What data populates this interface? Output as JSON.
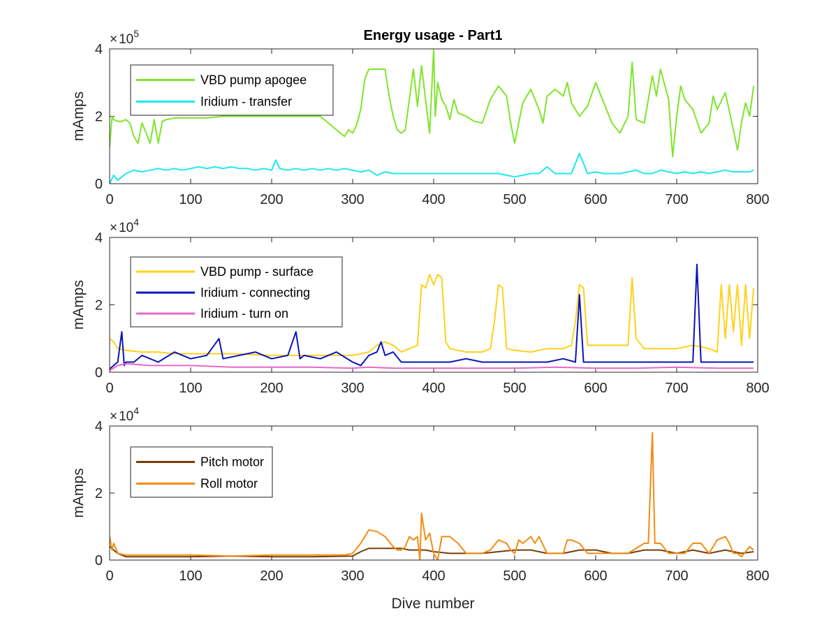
{
  "title": "Energy usage - Part1",
  "xlabel": "Dive number",
  "chart_data": [
    {
      "type": "line",
      "title": "Energy usage - Part1",
      "ylabel": "mAmps",
      "xlabel": "",
      "multiplier": "10",
      "exponent": "5",
      "xlim": [
        0,
        800
      ],
      "ylim": [
        0,
        4
      ],
      "xticks": [
        "0",
        "100",
        "200",
        "300",
        "400",
        "500",
        "600",
        "700",
        "800"
      ],
      "yticks": [
        "0",
        "2",
        "4"
      ],
      "legend_position": "top-left",
      "grid": false,
      "series": [
        {
          "name": "VBD pump apogee",
          "color": "#7fe52a",
          "x": [
            0,
            3,
            5,
            10,
            15,
            20,
            25,
            30,
            35,
            40,
            45,
            50,
            55,
            60,
            65,
            70,
            80,
            90,
            100,
            120,
            140,
            160,
            180,
            200,
            220,
            240,
            260,
            270,
            280,
            285,
            290,
            295,
            300,
            305,
            310,
            315,
            320,
            330,
            340,
            345,
            350,
            355,
            360,
            365,
            370,
            375,
            380,
            385,
            390,
            395,
            398,
            400,
            402,
            405,
            410,
            415,
            420,
            425,
            430,
            440,
            450,
            460,
            470,
            480,
            490,
            495,
            500,
            505,
            510,
            520,
            530,
            535,
            540,
            550,
            560,
            565,
            570,
            580,
            590,
            600,
            610,
            620,
            630,
            640,
            645,
            650,
            660,
            670,
            675,
            680,
            690,
            695,
            700,
            705,
            710,
            720,
            730,
            740,
            745,
            750,
            760,
            770,
            775,
            780,
            785,
            790,
            795
          ],
          "y": [
            1.1,
            2.0,
            1.9,
            1.85,
            1.85,
            1.9,
            1.8,
            1.4,
            1.2,
            1.8,
            1.5,
            1.2,
            1.9,
            1.2,
            1.85,
            1.9,
            1.95,
            1.95,
            1.95,
            1.95,
            2.0,
            2.0,
            2.0,
            2.0,
            2.0,
            2.0,
            2.0,
            1.8,
            1.6,
            1.5,
            1.4,
            1.6,
            1.5,
            1.75,
            2.2,
            3.1,
            3.4,
            3.4,
            3.4,
            2.6,
            2.0,
            1.6,
            1.5,
            1.6,
            2.5,
            3.4,
            2.3,
            3.5,
            2.5,
            1.5,
            3.0,
            4.0,
            2.0,
            3.0,
            2.5,
            2.3,
            1.9,
            2.5,
            2.1,
            2.0,
            1.85,
            1.8,
            2.5,
            2.9,
            2.6,
            1.8,
            1.2,
            1.8,
            2.4,
            2.8,
            2.2,
            1.8,
            2.6,
            2.8,
            2.6,
            3.0,
            2.4,
            2.0,
            2.3,
            3.0,
            2.4,
            1.8,
            1.5,
            2.0,
            3.6,
            1.9,
            1.8,
            3.2,
            2.6,
            3.4,
            2.5,
            0.8,
            2.0,
            2.9,
            2.5,
            2.2,
            1.5,
            1.8,
            2.6,
            2.2,
            2.7,
            1.6,
            1.0,
            1.8,
            2.4,
            2.0,
            2.9
          ]
        },
        {
          "name": "Iridium - transfer",
          "color": "#1ee8f0",
          "x": [
            0,
            5,
            10,
            20,
            30,
            40,
            50,
            60,
            70,
            80,
            90,
            100,
            110,
            120,
            130,
            140,
            150,
            160,
            170,
            180,
            190,
            200,
            205,
            210,
            220,
            230,
            240,
            250,
            260,
            270,
            280,
            290,
            300,
            310,
            320,
            330,
            340,
            350,
            360,
            370,
            380,
            390,
            400,
            410,
            420,
            430,
            440,
            450,
            460,
            470,
            480,
            490,
            500,
            510,
            520,
            530,
            540,
            550,
            560,
            570,
            580,
            590,
            600,
            610,
            620,
            630,
            640,
            650,
            660,
            670,
            680,
            690,
            700,
            710,
            720,
            730,
            740,
            750,
            760,
            770,
            780,
            790,
            795
          ],
          "y": [
            0.0,
            0.25,
            0.1,
            0.3,
            0.4,
            0.35,
            0.4,
            0.45,
            0.4,
            0.45,
            0.4,
            0.45,
            0.5,
            0.45,
            0.5,
            0.45,
            0.5,
            0.45,
            0.45,
            0.4,
            0.45,
            0.4,
            0.7,
            0.45,
            0.4,
            0.45,
            0.4,
            0.45,
            0.4,
            0.45,
            0.4,
            0.45,
            0.4,
            0.35,
            0.4,
            0.25,
            0.35,
            0.3,
            0.3,
            0.3,
            0.3,
            0.3,
            0.3,
            0.3,
            0.3,
            0.3,
            0.3,
            0.3,
            0.3,
            0.3,
            0.3,
            0.25,
            0.2,
            0.25,
            0.3,
            0.3,
            0.5,
            0.3,
            0.3,
            0.3,
            0.9,
            0.3,
            0.35,
            0.3,
            0.3,
            0.3,
            0.35,
            0.4,
            0.3,
            0.3,
            0.4,
            0.35,
            0.3,
            0.35,
            0.3,
            0.35,
            0.3,
            0.35,
            0.4,
            0.35,
            0.35,
            0.35,
            0.4
          ]
        }
      ]
    },
    {
      "type": "line",
      "ylabel": "mAmps",
      "xlabel": "",
      "multiplier": "10",
      "exponent": "4",
      "xlim": [
        0,
        800
      ],
      "ylim": [
        0,
        4
      ],
      "xticks": [
        "0",
        "100",
        "200",
        "300",
        "400",
        "500",
        "600",
        "700",
        "800"
      ],
      "yticks": [
        "0",
        "2",
        "4"
      ],
      "legend_position": "top-left",
      "grid": false,
      "series": [
        {
          "name": "VBD pump - surface",
          "color": "#ffd11a",
          "x": [
            0,
            5,
            10,
            20,
            40,
            60,
            80,
            100,
            150,
            200,
            250,
            300,
            320,
            330,
            340,
            350,
            360,
            370,
            380,
            385,
            390,
            395,
            400,
            405,
            410,
            415,
            420,
            440,
            460,
            470,
            475,
            480,
            485,
            490,
            500,
            520,
            540,
            560,
            570,
            575,
            580,
            585,
            590,
            600,
            620,
            640,
            645,
            650,
            660,
            680,
            700,
            720,
            740,
            750,
            755,
            760,
            765,
            770,
            775,
            780,
            785,
            790,
            795
          ],
          "y": [
            1.0,
            0.9,
            0.7,
            0.65,
            0.6,
            0.6,
            0.55,
            0.55,
            0.55,
            0.5,
            0.5,
            0.5,
            0.6,
            0.8,
            0.9,
            0.8,
            0.6,
            0.7,
            0.8,
            2.6,
            2.5,
            2.9,
            2.6,
            2.9,
            2.8,
            0.9,
            0.7,
            0.6,
            0.6,
            0.7,
            1.5,
            2.6,
            2.5,
            0.7,
            0.65,
            0.6,
            0.7,
            0.7,
            0.8,
            1.5,
            2.6,
            2.5,
            0.8,
            0.8,
            0.8,
            0.8,
            2.8,
            1.0,
            0.7,
            0.7,
            0.7,
            0.8,
            0.7,
            0.6,
            2.6,
            1.0,
            2.6,
            1.2,
            2.6,
            0.8,
            2.6,
            1.0,
            2.5
          ]
        },
        {
          "name": "Iridium - connecting",
          "color": "#0a14b8",
          "x": [
            0,
            5,
            10,
            15,
            18,
            20,
            30,
            40,
            60,
            80,
            100,
            120,
            135,
            140,
            160,
            180,
            200,
            220,
            230,
            235,
            240,
            260,
            280,
            300,
            310,
            320,
            330,
            335,
            340,
            350,
            360,
            380,
            400,
            420,
            440,
            460,
            480,
            500,
            520,
            540,
            560,
            575,
            580,
            585,
            600,
            620,
            640,
            660,
            680,
            700,
            710,
            720,
            725,
            730,
            740,
            760,
            780,
            795
          ],
          "y": [
            0.1,
            0.2,
            0.3,
            1.2,
            0.2,
            0.3,
            0.3,
            0.5,
            0.3,
            0.6,
            0.4,
            0.5,
            1.0,
            0.4,
            0.5,
            0.6,
            0.4,
            0.5,
            1.2,
            0.4,
            0.5,
            0.4,
            0.6,
            0.3,
            0.2,
            0.5,
            0.6,
            0.9,
            0.5,
            0.6,
            0.3,
            0.3,
            0.3,
            0.3,
            0.4,
            0.3,
            0.3,
            0.3,
            0.3,
            0.3,
            0.4,
            0.3,
            2.3,
            0.3,
            0.3,
            0.3,
            0.3,
            0.3,
            0.3,
            0.3,
            0.3,
            0.3,
            3.2,
            0.3,
            0.3,
            0.3,
            0.3,
            0.3
          ]
        },
        {
          "name": "Iridium - turn on",
          "color": "#e668c8",
          "x": [
            0,
            10,
            20,
            50,
            100,
            150,
            200,
            250,
            300,
            320,
            350,
            400,
            450,
            500,
            550,
            600,
            650,
            700,
            750,
            795
          ],
          "y": [
            0.05,
            0.2,
            0.25,
            0.2,
            0.2,
            0.15,
            0.15,
            0.15,
            0.12,
            0.15,
            0.12,
            0.12,
            0.12,
            0.12,
            0.15,
            0.12,
            0.12,
            0.15,
            0.12,
            0.12
          ]
        }
      ]
    },
    {
      "type": "line",
      "ylabel": "mAmps",
      "xlabel": "Dive number",
      "multiplier": "10",
      "exponent": "4",
      "xlim": [
        0,
        800
      ],
      "ylim": [
        0,
        4
      ],
      "xticks": [
        "0",
        "100",
        "200",
        "300",
        "400",
        "500",
        "600",
        "700",
        "800"
      ],
      "yticks": [
        "0",
        "2",
        "4"
      ],
      "legend_position": "top-left",
      "grid": false,
      "series": [
        {
          "name": "Pitch motor",
          "color": "#7a3d0a",
          "x": [
            0,
            5,
            10,
            20,
            50,
            100,
            150,
            200,
            250,
            300,
            310,
            320,
            330,
            340,
            350,
            360,
            370,
            380,
            390,
            400,
            420,
            440,
            460,
            480,
            500,
            520,
            540,
            560,
            580,
            600,
            620,
            640,
            660,
            680,
            700,
            720,
            740,
            760,
            780,
            795
          ],
          "y": [
            0.4,
            0.3,
            0.2,
            0.1,
            0.1,
            0.1,
            0.12,
            0.1,
            0.1,
            0.12,
            0.25,
            0.35,
            0.35,
            0.35,
            0.35,
            0.35,
            0.3,
            0.3,
            0.3,
            0.25,
            0.2,
            0.2,
            0.2,
            0.25,
            0.3,
            0.3,
            0.2,
            0.2,
            0.3,
            0.3,
            0.2,
            0.2,
            0.3,
            0.3,
            0.2,
            0.3,
            0.2,
            0.3,
            0.2,
            0.25
          ]
        },
        {
          "name": "Roll motor",
          "color": "#f28c12",
          "x": [
            0,
            3,
            5,
            10,
            20,
            50,
            100,
            150,
            200,
            250,
            290,
            300,
            310,
            320,
            330,
            340,
            350,
            355,
            360,
            365,
            370,
            375,
            380,
            383,
            385,
            390,
            395,
            400,
            405,
            410,
            420,
            430,
            440,
            460,
            470,
            480,
            490,
            495,
            500,
            505,
            510,
            520,
            525,
            530,
            540,
            560,
            565,
            570,
            580,
            590,
            600,
            620,
            640,
            660,
            665,
            670,
            673,
            675,
            680,
            690,
            700,
            710,
            720,
            730,
            740,
            750,
            760,
            765,
            770,
            775,
            780,
            790,
            795
          ],
          "y": [
            0.7,
            0.3,
            0.5,
            0.2,
            0.15,
            0.15,
            0.15,
            0.12,
            0.15,
            0.15,
            0.15,
            0.2,
            0.5,
            0.9,
            0.85,
            0.7,
            0.4,
            0.3,
            0.3,
            0.4,
            0.7,
            0.6,
            0.7,
            0.0,
            1.4,
            0.6,
            0.8,
            0.2,
            0.0,
            0.7,
            0.7,
            0.5,
            0.2,
            0.2,
            0.3,
            0.6,
            0.5,
            0.3,
            0.2,
            0.6,
            0.5,
            0.7,
            0.5,
            0.7,
            0.2,
            0.2,
            0.6,
            0.6,
            0.5,
            0.2,
            0.2,
            0.2,
            0.2,
            0.5,
            0.5,
            3.8,
            0.5,
            0.5,
            0.5,
            0.2,
            0.2,
            0.2,
            0.5,
            0.5,
            0.2,
            0.6,
            0.7,
            0.5,
            0.2,
            0.2,
            0.1,
            0.4,
            0.3
          ]
        }
      ]
    }
  ]
}
